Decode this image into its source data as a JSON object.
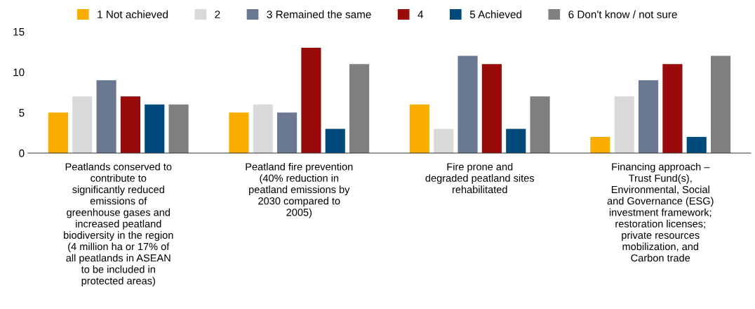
{
  "chart_data": {
    "type": "bar",
    "categories": [
      "Peatlands conserved to\ncontribute to\nsignificantly reduced\nemissions of\ngreenhouse gases and\nincreased peatland\nbiodiversity in the region\n(4 million ha or 17% of\nall peatlands in ASEAN\nto be included in\nprotected areas)",
      "Peatland fire prevention\n(40% reduction in\npeatland emissions by\n2030 compared to\n2005)",
      "Fire prone and\ndegraded peatland sites\nrehabilitated",
      "Financing approach –\nTrust Fund(s),\nEnvironmental, Social\nand Governance (ESG)\ninvestment framework;\nrestoration licenses;\nprivate resources\nmobilization, and\nCarbon trade"
    ],
    "series": [
      {
        "name": "1 Not achieved",
        "color": "#f9ad00",
        "values": [
          5,
          5,
          6,
          2
        ]
      },
      {
        "name": "2",
        "color": "#d9d9d9",
        "values": [
          7,
          6,
          3,
          7
        ]
      },
      {
        "name": "3 Remained the same",
        "color": "#6b7891",
        "values": [
          9,
          5,
          12,
          9
        ]
      },
      {
        "name": "4",
        "color": "#990a0a",
        "values": [
          7,
          13,
          11,
          11
        ]
      },
      {
        "name": "5 Achieved",
        "color": "#004a7c",
        "values": [
          6,
          3,
          3,
          2
        ]
      },
      {
        "name": "6 Don't know / not sure",
        "color": "#808080",
        "values": [
          6,
          11,
          7,
          12
        ]
      }
    ],
    "ylim": [
      0,
      15
    ],
    "yticks": [
      0,
      5,
      10,
      15
    ],
    "grid": false,
    "legend": "top"
  }
}
